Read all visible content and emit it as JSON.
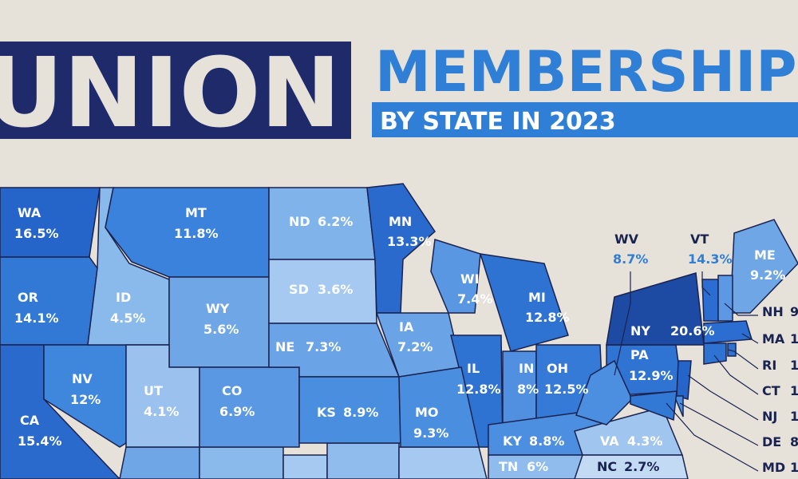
{
  "header": {
    "title_left": "UNION",
    "title_right": "MEMBERSHIP",
    "subtitle": "BY STATE IN 2023"
  },
  "states": [
    {
      "abbr": "WA",
      "rate": "16.5%",
      "color": "#2565c9"
    },
    {
      "abbr": "OR",
      "rate": "14.1%",
      "color": "#3279d6"
    },
    {
      "abbr": "CA",
      "rate": "15.4%",
      "color": "#2a6acd"
    },
    {
      "abbr": "NV",
      "rate": "12%",
      "color": "#3f87dd"
    },
    {
      "abbr": "ID",
      "rate": "4.5%",
      "color": "#8ab9ec"
    },
    {
      "abbr": "MT",
      "rate": "11.8%",
      "color": "#3b82dc"
    },
    {
      "abbr": "WY",
      "rate": "5.6%",
      "color": "#6ea6e6"
    },
    {
      "abbr": "UT",
      "rate": "4.1%",
      "color": "#9bc2ef"
    },
    {
      "abbr": "CO",
      "rate": "6.9%",
      "color": "#5b98e3"
    },
    {
      "abbr": "ND",
      "rate": "6.2%",
      "color": "#80b3ea"
    },
    {
      "abbr": "SD",
      "rate": "3.6%",
      "color": "#a6c9f1"
    },
    {
      "abbr": "NE",
      "rate": "7.3%",
      "color": "#6aa3e6"
    },
    {
      "abbr": "KS",
      "rate": "8.9%",
      "color": "#4a8ee0"
    },
    {
      "abbr": "MN",
      "rate": "13.3%",
      "color": "#2a6acd"
    },
    {
      "abbr": "IA",
      "rate": "7.2%",
      "color": "#6aa3e6"
    },
    {
      "abbr": "WI",
      "rate": "7.4%",
      "color": "#5a97e3"
    },
    {
      "abbr": "MI",
      "rate": "12.8%",
      "color": "#2e72d2"
    },
    {
      "abbr": "IL",
      "rate": "12.8%",
      "color": "#2e72d2"
    },
    {
      "abbr": "MO",
      "rate": "9.3%",
      "color": "#4a8ee0"
    },
    {
      "abbr": "IN",
      "rate": "8%",
      "color": "#5190e1"
    },
    {
      "abbr": "OH",
      "rate": "12.5%",
      "color": "#347ad6"
    },
    {
      "abbr": "KY",
      "rate": "8.8%",
      "color": "#4c8fe0"
    },
    {
      "abbr": "TN",
      "rate": "6%",
      "color": "#8fbbed"
    },
    {
      "abbr": "VA",
      "rate": "4.3%",
      "color": "#a0c5ef"
    },
    {
      "abbr": "NC",
      "rate": "2.7%",
      "color": "#c3daf4"
    },
    {
      "abbr": "PA",
      "rate": "12.9%",
      "color": "#2f73d3"
    },
    {
      "abbr": "NY",
      "rate": "20.6%",
      "color": "#1d4aa3"
    },
    {
      "abbr": "WV",
      "rate": "8.7%",
      "color": "#4c8fe0"
    },
    {
      "abbr": "VT",
      "rate": "14.3%",
      "color": "#2b6dd0"
    },
    {
      "abbr": "ME",
      "rate": "9.2%",
      "color": "#6ea6e6"
    },
    {
      "abbr": "NH",
      "rate": "9",
      "color": "#5c98e3"
    },
    {
      "abbr": "MA",
      "rate": "1",
      "color": "#2b6dd0"
    },
    {
      "abbr": "RI",
      "rate": "1",
      "color": "#2e72d2"
    },
    {
      "abbr": "CT",
      "rate": "1",
      "color": "#2e72d2"
    },
    {
      "abbr": "NJ",
      "rate": "1",
      "color": "#2565c9"
    },
    {
      "abbr": "DE",
      "rate": "8",
      "color": "#4c8fe0"
    },
    {
      "abbr": "MD",
      "rate": "1",
      "color": "#3279d6"
    }
  ]
}
